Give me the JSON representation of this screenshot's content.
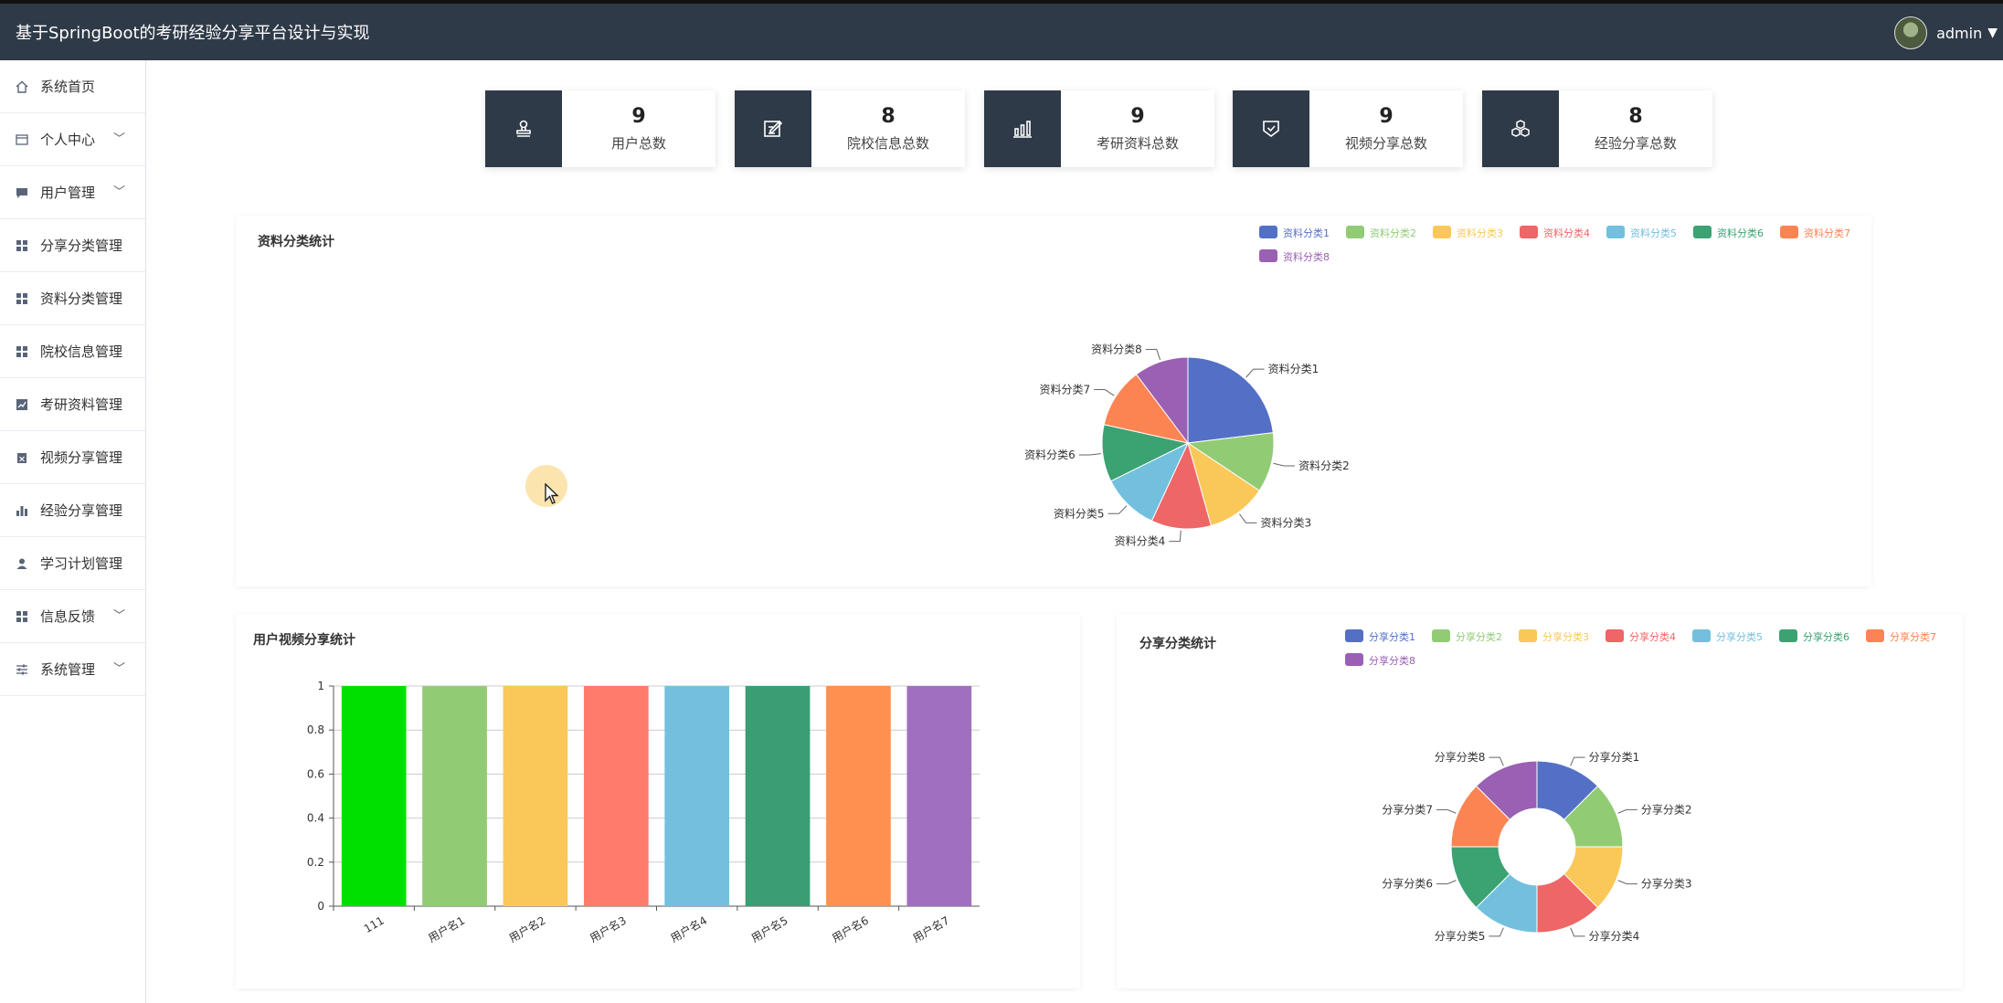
{
  "header": {
    "title": "基于SpringBoot的考研经验分享平台设计与实现",
    "username": "admin"
  },
  "sidebar": {
    "items": [
      {
        "label": "系统首页",
        "icon": "home-icon",
        "expandable": false
      },
      {
        "label": "个人中心",
        "icon": "id-card-icon",
        "expandable": true
      },
      {
        "label": "用户管理",
        "icon": "chat-icon",
        "expandable": true
      },
      {
        "label": "分享分类管理",
        "icon": "grid-icon",
        "expandable": false
      },
      {
        "label": "资料分类管理",
        "icon": "grid-icon",
        "expandable": false
      },
      {
        "label": "院校信息管理",
        "icon": "grid-icon",
        "expandable": false
      },
      {
        "label": "考研资料管理",
        "icon": "trend-icon",
        "expandable": false
      },
      {
        "label": "视频分享管理",
        "icon": "clipboard-icon",
        "expandable": false
      },
      {
        "label": "经验分享管理",
        "icon": "bar-icon",
        "expandable": false
      },
      {
        "label": "学习计划管理",
        "icon": "user-icon",
        "expandable": false
      },
      {
        "label": "信息反馈",
        "icon": "grid-icon",
        "expandable": true
      },
      {
        "label": "系统管理",
        "icon": "sliders-icon",
        "expandable": true
      }
    ]
  },
  "stats": [
    {
      "value": "9",
      "label": "用户总数",
      "icon": "stamp-icon"
    },
    {
      "value": "8",
      "label": "院校信息总数",
      "icon": "edit-icon"
    },
    {
      "value": "9",
      "label": "考研资料总数",
      "icon": "chart-icon"
    },
    {
      "value": "9",
      "label": "视频分享总数",
      "icon": "shield-icon"
    },
    {
      "value": "8",
      "label": "经验分享总数",
      "icon": "cubes-icon"
    }
  ],
  "palette": [
    "#5470c6",
    "#91cc75",
    "#fac858",
    "#ee6666",
    "#73c0de",
    "#3ba272",
    "#fc8452",
    "#9a60b4"
  ],
  "chart_data": [
    {
      "title": "资料分类统计",
      "type": "pie",
      "categories": [
        "资料分类1",
        "资料分类2",
        "资料分类3",
        "资料分类4",
        "资料分类5",
        "资料分类6",
        "资料分类7",
        "资料分类8"
      ],
      "values": [
        2.25,
        1.1,
        1.1,
        1.1,
        1.05,
        1.05,
        1.1,
        1.0
      ],
      "legend": "top-right"
    },
    {
      "title": "用户视频分享统计",
      "type": "bar",
      "categories": [
        "111",
        "用户名1",
        "用户名2",
        "用户名3",
        "用户名4",
        "用户名5",
        "用户名6",
        "用户名7"
      ],
      "values": [
        1,
        1,
        1,
        1,
        1,
        1,
        1,
        1
      ],
      "colors": [
        "#00e000",
        "#91cc75",
        "#fac858",
        "#ff7b6b",
        "#73c0de",
        "#3a9d73",
        "#ff9050",
        "#a070be"
      ],
      "yticks": [
        "0",
        "0.2",
        "0.4",
        "0.6",
        "0.8",
        "1"
      ],
      "ylim": [
        0,
        1
      ],
      "grid": true
    },
    {
      "title": "分享分类统计",
      "type": "pie",
      "donut": true,
      "categories": [
        "分享分类1",
        "分享分类2",
        "分享分类3",
        "分享分类4",
        "分享分类5",
        "分享分类6",
        "分享分类7",
        "分享分类8"
      ],
      "values": [
        1,
        1,
        1,
        1,
        1,
        1,
        1,
        1
      ],
      "legend": "top-right"
    }
  ]
}
